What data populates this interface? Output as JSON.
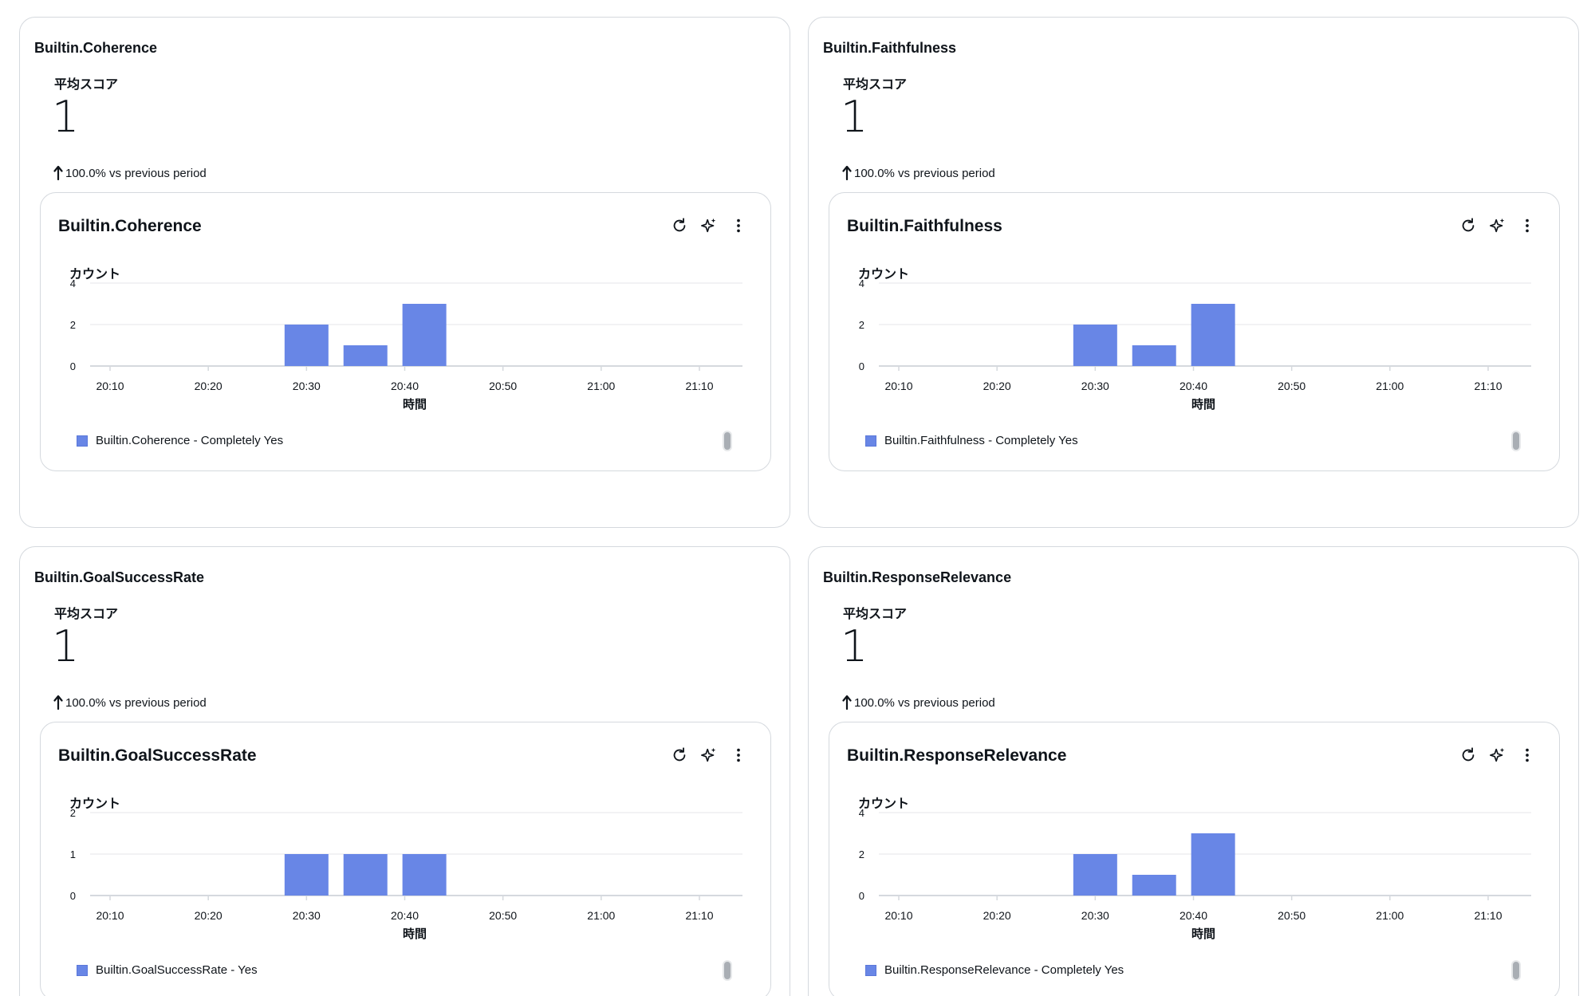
{
  "colors": {
    "bar": "#6886e6",
    "axis": "#d5d9de",
    "grid": "#e9ebed",
    "text": "#0f141a"
  },
  "cards": [
    {
      "title": "Builtin.Coherence",
      "avg_label": "平均スコア",
      "avg_value": "1",
      "delta_text": "100.0% vs previous period",
      "chart_title": "Builtin.Coherence",
      "legend": "Builtin.Coherence - Completely Yes",
      "chart_data": {
        "type": "bar",
        "ylabel": "カウント",
        "xlabel": "時間",
        "yticks": [
          "0",
          "2",
          "4"
        ],
        "ylim": [
          0,
          4
        ],
        "xticks": [
          "20:10",
          "20:20",
          "20:30",
          "20:40",
          "20:50",
          "21:00",
          "21:10"
        ],
        "bars": [
          {
            "x": "20:30",
            "value": 2
          },
          {
            "x": "20:36",
            "value": 1
          },
          {
            "x": "20:42",
            "value": 3
          }
        ],
        "series": [
          {
            "name": "Builtin.Coherence - Completely Yes"
          }
        ]
      }
    },
    {
      "title": "Builtin.Faithfulness",
      "avg_label": "平均スコア",
      "avg_value": "1",
      "delta_text": "100.0% vs previous period",
      "chart_title": "Builtin.Faithfulness",
      "legend": "Builtin.Faithfulness - Completely Yes",
      "chart_data": {
        "type": "bar",
        "ylabel": "カウント",
        "xlabel": "時間",
        "yticks": [
          "0",
          "2",
          "4"
        ],
        "ylim": [
          0,
          4
        ],
        "xticks": [
          "20:10",
          "20:20",
          "20:30",
          "20:40",
          "20:50",
          "21:00",
          "21:10"
        ],
        "bars": [
          {
            "x": "20:30",
            "value": 2
          },
          {
            "x": "20:36",
            "value": 1
          },
          {
            "x": "20:42",
            "value": 3
          }
        ],
        "series": [
          {
            "name": "Builtin.Faithfulness - Completely Yes"
          }
        ]
      }
    },
    {
      "title": "Builtin.GoalSuccessRate",
      "avg_label": "平均スコア",
      "avg_value": "1",
      "delta_text": "100.0% vs previous period",
      "chart_title": "Builtin.GoalSuccessRate",
      "legend": "Builtin.GoalSuccessRate - Yes",
      "chart_data": {
        "type": "bar",
        "ylabel": "カウント",
        "xlabel": "時間",
        "yticks": [
          "0",
          "1",
          "2"
        ],
        "ylim": [
          0,
          2
        ],
        "xticks": [
          "20:10",
          "20:20",
          "20:30",
          "20:40",
          "20:50",
          "21:00",
          "21:10"
        ],
        "bars": [
          {
            "x": "20:30",
            "value": 1
          },
          {
            "x": "20:36",
            "value": 1
          },
          {
            "x": "20:42",
            "value": 1
          }
        ],
        "series": [
          {
            "name": "Builtin.GoalSuccessRate - Yes"
          }
        ]
      }
    },
    {
      "title": "Builtin.ResponseRelevance",
      "avg_label": "平均スコア",
      "avg_value": "1",
      "delta_text": "100.0% vs previous period",
      "chart_title": "Builtin.ResponseRelevance",
      "legend": "Builtin.ResponseRelevance - Completely Yes",
      "chart_data": {
        "type": "bar",
        "ylabel": "カウント",
        "xlabel": "時間",
        "yticks": [
          "0",
          "2",
          "4"
        ],
        "ylim": [
          0,
          4
        ],
        "xticks": [
          "20:10",
          "20:20",
          "20:30",
          "20:40",
          "20:50",
          "21:00",
          "21:10"
        ],
        "bars": [
          {
            "x": "20:30",
            "value": 2
          },
          {
            "x": "20:36",
            "value": 1
          },
          {
            "x": "20:42",
            "value": 3
          }
        ],
        "series": [
          {
            "name": "Builtin.ResponseRelevance - Completely Yes"
          }
        ]
      }
    }
  ],
  "chart_data": [
    {
      "type": "bar",
      "title": "Builtin.Coherence",
      "ylabel": "カウント",
      "xlabel": "時間",
      "ylim": [
        0,
        4
      ],
      "categories": [
        "20:30",
        "20:36",
        "20:42"
      ],
      "series": [
        {
          "name": "Builtin.Coherence - Completely Yes",
          "values": [
            2,
            1,
            3
          ]
        }
      ]
    },
    {
      "type": "bar",
      "title": "Builtin.Faithfulness",
      "ylabel": "カウント",
      "xlabel": "時間",
      "ylim": [
        0,
        4
      ],
      "categories": [
        "20:30",
        "20:36",
        "20:42"
      ],
      "series": [
        {
          "name": "Builtin.Faithfulness - Completely Yes",
          "values": [
            2,
            1,
            3
          ]
        }
      ]
    },
    {
      "type": "bar",
      "title": "Builtin.GoalSuccessRate",
      "ylabel": "カウント",
      "xlabel": "時間",
      "ylim": [
        0,
        2
      ],
      "categories": [
        "20:30",
        "20:36",
        "20:42"
      ],
      "series": [
        {
          "name": "Builtin.GoalSuccessRate - Yes",
          "values": [
            1,
            1,
            1
          ]
        }
      ]
    },
    {
      "type": "bar",
      "title": "Builtin.ResponseRelevance",
      "ylabel": "カウント",
      "xlabel": "時間",
      "ylim": [
        0,
        4
      ],
      "categories": [
        "20:30",
        "20:36",
        "20:42"
      ],
      "series": [
        {
          "name": "Builtin.ResponseRelevance - Completely Yes",
          "values": [
            2,
            1,
            3
          ]
        }
      ]
    }
  ]
}
